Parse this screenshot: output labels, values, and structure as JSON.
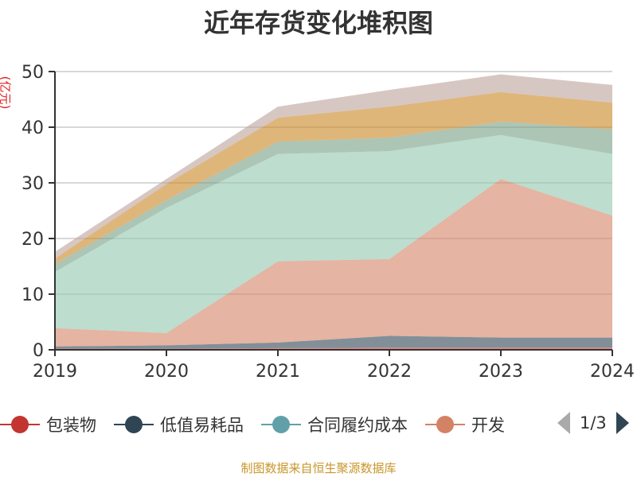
{
  "chart_data": {
    "type": "area",
    "stacked": true,
    "title": "近年存货变化堆积图",
    "ylabel": "(亿元)",
    "xlabel": "",
    "categories": [
      "2019",
      "2020",
      "2021",
      "2022",
      "2023",
      "2024"
    ],
    "ylim": [
      0,
      50
    ],
    "yticks": [
      "0",
      "10",
      "20",
      "30",
      "40",
      "50"
    ],
    "grid": true,
    "legend_position": "bottom",
    "series": [
      {
        "name": "包装物",
        "color": "#c23531",
        "values": [
          0.2,
          0.2,
          0.3,
          0.4,
          0.4,
          0.4
        ]
      },
      {
        "name": "低值易耗品",
        "color": "#2f4554",
        "values": [
          0.4,
          0.6,
          1.0,
          2.1,
          1.8,
          1.8
        ]
      },
      {
        "name": "合同履约成本",
        "color": "#61a0a8",
        "values": [
          0,
          0,
          0,
          0,
          0,
          0
        ]
      },
      {
        "name": "开发",
        "color": "#d48265",
        "values": [
          3.3,
          2.2,
          14.6,
          13.8,
          28.5,
          21.9
        ]
      },
      {
        "color": "#91c7ae",
        "values": [
          10.1,
          22.5,
          19.3,
          19.4,
          7.9,
          11.1
        ]
      },
      {
        "color": "#749f83",
        "values": [
          1.4,
          1.4,
          2.2,
          2.4,
          2.4,
          4.4
        ]
      },
      {
        "color": "#ca8622",
        "values": [
          1.0,
          2.9,
          4.3,
          5.6,
          5.3,
          4.8
        ]
      },
      {
        "color": "#bda29a",
        "values": [
          1.2,
          0.9,
          2.0,
          3.0,
          3.2,
          3.2
        ]
      }
    ]
  },
  "legend": {
    "items": [
      "包装物",
      "低值易耗品",
      "合同履约成本",
      "开发"
    ],
    "page": "1/3"
  },
  "footer": "制图数据来自恒生聚源数据库"
}
